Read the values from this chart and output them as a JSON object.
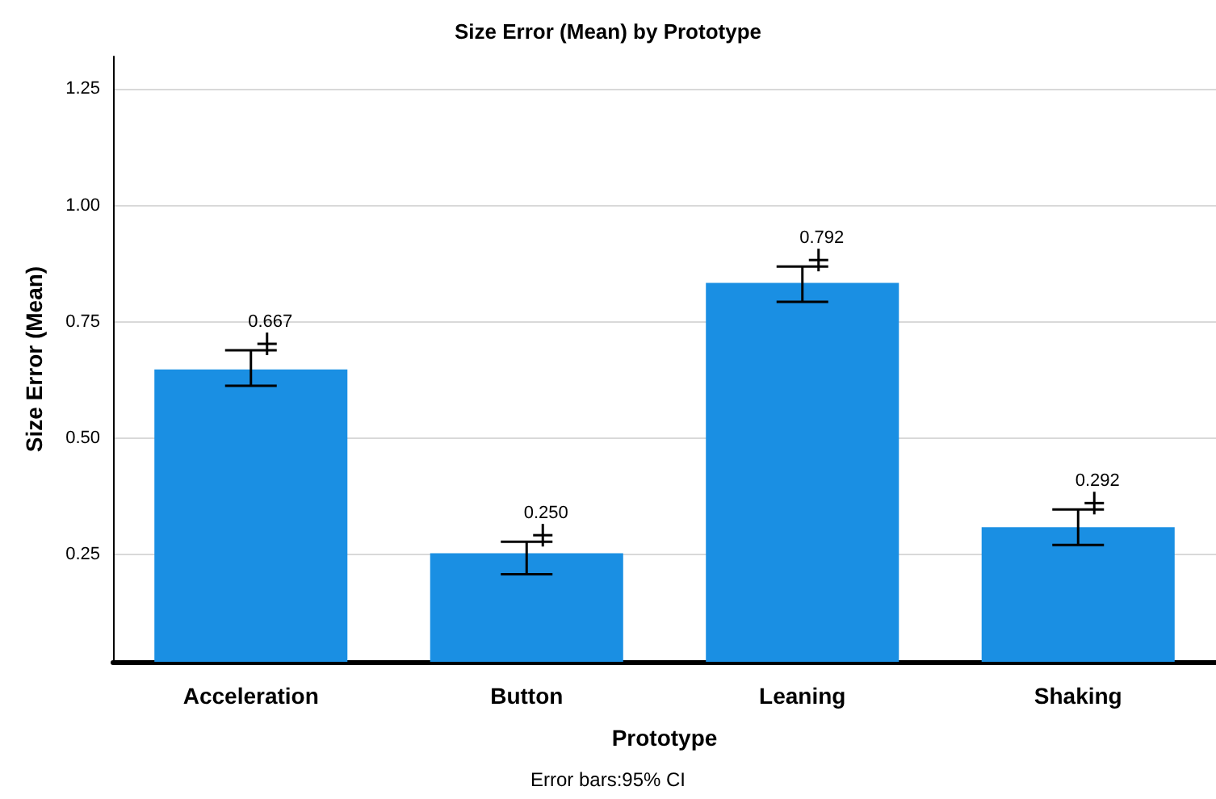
{
  "chart_data": {
    "type": "bar",
    "title": "Size Error (Mean) by Prototype",
    "xlabel": "Prototype",
    "ylabel": "Size Error (Mean)",
    "categories": [
      "Acceleration",
      "Button",
      "Leaning",
      "Shaking"
    ],
    "values": [
      0.648,
      0.253,
      0.834,
      0.309
    ],
    "color": "#1a8fe3",
    "errors": [
      [
        0.613,
        0.689
      ],
      [
        0.208,
        0.278
      ],
      [
        0.793,
        0.869
      ],
      [
        0.271,
        0.347
      ]
    ],
    "ylim": [
      0.02,
      1.32
    ],
    "yticks": [
      0.25,
      {
        "value": 0.5,
        "label": "0.50"
      },
      0.75,
      {
        "value": 1,
        "label": "1.00"
      },
      1.25
    ],
    "grid": "y",
    "annotations": [
      "Error bars:95% CI",
      {
        "text": "0.667",
        "x": "Acceleration",
        "y": 0.689
      },
      {
        "text": "0.250",
        "x": "Button",
        "y": 0.278
      },
      {
        "text": "0.792",
        "x": "Leaning",
        "y": 0.869
      },
      {
        "text": "0.292",
        "x": "Shaking",
        "y": 0.347
      }
    ]
  }
}
